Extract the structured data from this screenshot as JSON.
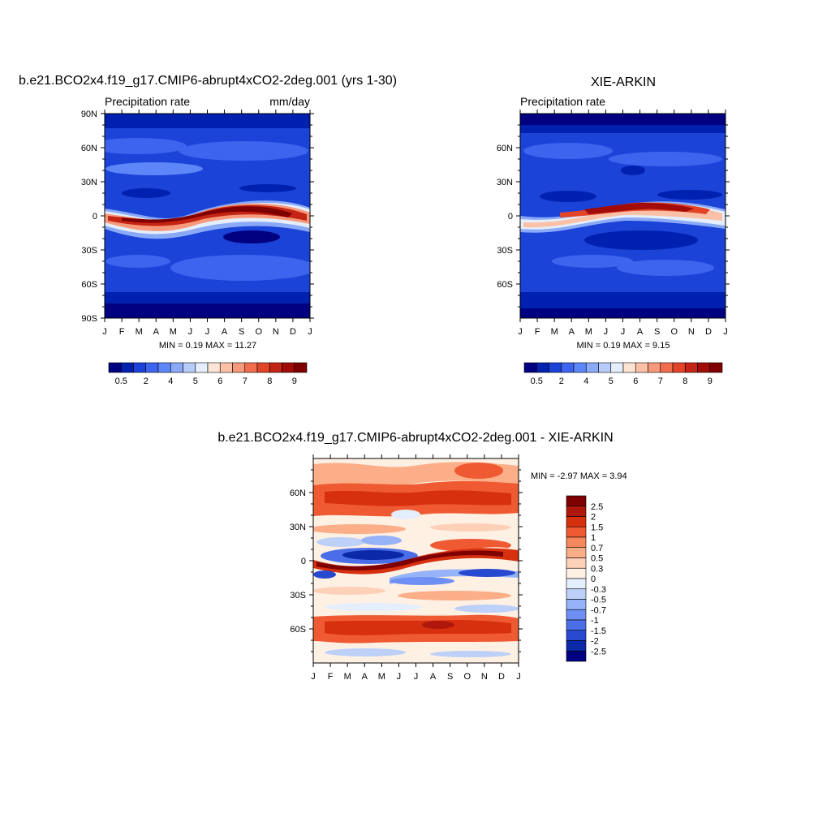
{
  "chart_data": [
    {
      "type": "heatmap",
      "title": "b.e21.BCO2x4.f19_g17.CMIP6-abrupt4xCO2-2deg.001 (yrs 1-30)",
      "left_string": "Precipitation rate",
      "right_string": "mm/day",
      "x": [
        "J",
        "F",
        "M",
        "A",
        "M",
        "J",
        "J",
        "A",
        "S",
        "O",
        "N",
        "D",
        "J"
      ],
      "y_ticks": [
        "90N",
        "60N",
        "30N",
        "0",
        "30S",
        "60S",
        "90S"
      ],
      "ylim": [
        -90,
        90
      ],
      "stats": "MIN =   0.19 MAX =  11.27",
      "colorbar": {
        "orientation": "horizontal",
        "labels": [
          "0.5",
          "2",
          "4",
          "5",
          "6",
          "7",
          "8",
          "9"
        ],
        "colors": [
          "#000080",
          "#0021b0",
          "#1b43d8",
          "#3d64ef",
          "#5d86f8",
          "#8aaaf8",
          "#b7ccf8",
          "#e4eefc",
          "#fde5d3",
          "#fbc1a7",
          "#f79a7b",
          "#f16d4f",
          "#e24428",
          "#c42414",
          "#a10c08",
          "#7f0000"
        ]
      }
    },
    {
      "type": "heatmap",
      "title": "XIE-ARKIN",
      "left_string": "Precipitation rate",
      "right_string": "",
      "x": [
        "J",
        "F",
        "M",
        "A",
        "M",
        "J",
        "J",
        "A",
        "S",
        "O",
        "N",
        "D",
        "J"
      ],
      "y_ticks": [
        "60N",
        "30N",
        "0",
        "30S",
        "60S"
      ],
      "ylim": [
        -90,
        90
      ],
      "stats": "MIN =   0.19 MAX =   9.15",
      "colorbar": {
        "orientation": "horizontal",
        "labels": [
          "0.5",
          "2",
          "4",
          "5",
          "6",
          "7",
          "8",
          "9"
        ],
        "colors": [
          "#000080",
          "#0021b0",
          "#1b43d8",
          "#3d64ef",
          "#5d86f8",
          "#8aaaf8",
          "#b7ccf8",
          "#e4eefc",
          "#fde5d3",
          "#fbc1a7",
          "#f79a7b",
          "#f16d4f",
          "#e24428",
          "#c42414",
          "#a10c08",
          "#7f0000"
        ]
      }
    },
    {
      "type": "heatmap",
      "title": "b.e21.BCO2x4.f19_g17.CMIP6-abrupt4xCO2-2deg.001 - XIE-ARKIN",
      "left_string": "",
      "right_string": "",
      "x": [
        "J",
        "F",
        "M",
        "A",
        "M",
        "J",
        "J",
        "A",
        "S",
        "O",
        "N",
        "D",
        "J"
      ],
      "y_ticks": [
        "60N",
        "30N",
        "0",
        "30S",
        "60S"
      ],
      "ylim": [
        -90,
        90
      ],
      "stats": "MIN =  -2.97 MAX =   3.94",
      "colorbar": {
        "orientation": "vertical",
        "labels": [
          "2.5",
          "2",
          "1.5",
          "1",
          "0.7",
          "0.5",
          "0.3",
          "0",
          "-0.3",
          "-0.5",
          "-0.7",
          "-1",
          "-1.5",
          "-2",
          "-2.5"
        ],
        "colors": [
          "#7f0000",
          "#b0170c",
          "#d6300f",
          "#ef5a32",
          "#f7875c",
          "#fbae88",
          "#fdd0b8",
          "#fff0e4",
          "#e4eefc",
          "#bcd0f8",
          "#96b2f8",
          "#6e90f4",
          "#4a6ee8",
          "#2649d0",
          "#0a28a8",
          "#000080"
        ]
      }
    }
  ]
}
